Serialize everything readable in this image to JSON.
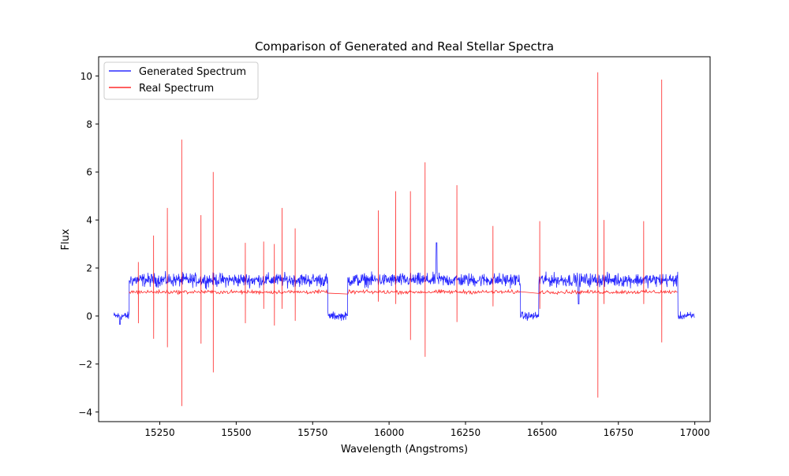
{
  "chart_data": {
    "type": "line",
    "title": "Comparison of Generated and Real Stellar Spectra",
    "xlabel": "Wavelength (Angstroms)",
    "ylabel": "Flux",
    "xlim": [
      15050,
      17050
    ],
    "ylim": [
      -4.4,
      10.8
    ],
    "xticks": [
      15250,
      15500,
      15750,
      16000,
      16250,
      16500,
      16750,
      17000
    ],
    "yticks": [
      -4,
      -2,
      0,
      2,
      4,
      6,
      8,
      10
    ],
    "xtick_labels": [
      "15250",
      "15500",
      "15750",
      "16000",
      "16250",
      "16500",
      "16750",
      "17000"
    ],
    "ytick_labels": [
      "−4",
      "−2",
      "0",
      "2",
      "4",
      "6",
      "8",
      "10"
    ],
    "legend_position": "top-left",
    "grid": false,
    "colors": {
      "generated": "#0000ff",
      "real": "#ff0000"
    },
    "x_range": [
      15100,
      17000
    ],
    "chip_gaps": [
      [
        15100,
        15150
      ],
      [
        15800,
        15865
      ],
      [
        16430,
        16490
      ],
      [
        16945,
        17000
      ]
    ],
    "series": [
      {
        "name": "Generated Spectrum",
        "color": "#0000ff",
        "continuum_levels": [
          {
            "x": [
              15100,
              15150
            ],
            "level": 0.0,
            "noise": 0.15
          },
          {
            "x": [
              15150,
              15800
            ],
            "level": 1.5,
            "noise": 0.25
          },
          {
            "x": [
              15800,
              15865
            ],
            "level": 0.0,
            "noise": 0.15
          },
          {
            "x": [
              15865,
              16430
            ],
            "level": 1.5,
            "noise": 0.25
          },
          {
            "x": [
              16430,
              16490
            ],
            "level": 0.0,
            "noise": 0.15
          },
          {
            "x": [
              16490,
              16945
            ],
            "level": 1.5,
            "noise": 0.25
          },
          {
            "x": [
              16945,
              17000
            ],
            "level": 0.0,
            "noise": 0.15
          }
        ],
        "features": [
          {
            "x": 16155,
            "y": 3.05
          },
          {
            "x": 16620,
            "y": 0.5
          },
          {
            "x": 15120,
            "y": -0.35
          }
        ]
      },
      {
        "name": "Real Spectrum",
        "color": "#ff0000",
        "continuum_levels": [
          {
            "x": [
              15150,
              15800
            ],
            "level": 1.0,
            "noise": 0.07
          },
          {
            "x": [
              15865,
              16430
            ],
            "level": 1.0,
            "noise": 0.07
          },
          {
            "x": [
              16490,
              16945
            ],
            "level": 1.0,
            "noise": 0.07
          }
        ],
        "spikes": [
          {
            "x": 15180,
            "high": 2.25,
            "low": -0.3
          },
          {
            "x": 15230,
            "high": 3.35,
            "low": -0.95
          },
          {
            "x": 15275,
            "high": 4.5,
            "low": -1.3
          },
          {
            "x": 15322,
            "high": 7.35,
            "low": -3.75
          },
          {
            "x": 15385,
            "high": 4.2,
            "low": -1.15
          },
          {
            "x": 15425,
            "high": 6.0,
            "low": -2.35
          },
          {
            "x": 15530,
            "high": 3.05,
            "low": -0.3
          },
          {
            "x": 15590,
            "high": 3.1,
            "low": 0.3
          },
          {
            "x": 15625,
            "high": 3.0,
            "low": -0.4
          },
          {
            "x": 15650,
            "high": 4.5,
            "low": 0.3
          },
          {
            "x": 15693,
            "high": 3.65,
            "low": -0.2
          },
          {
            "x": 15965,
            "high": 4.4,
            "low": 0.6
          },
          {
            "x": 16022,
            "high": 5.2,
            "low": 0.5
          },
          {
            "x": 16070,
            "high": 5.2,
            "low": -1.0
          },
          {
            "x": 16118,
            "high": 6.4,
            "low": -1.7
          },
          {
            "x": 16222,
            "high": 5.45,
            "low": -0.25
          },
          {
            "x": 16340,
            "high": 3.75,
            "low": 0.4
          },
          {
            "x": 16493,
            "high": 3.95,
            "low": 0.3
          },
          {
            "x": 16683,
            "high": 10.15,
            "low": -3.4
          },
          {
            "x": 16703,
            "high": 4.0,
            "low": 0.5
          },
          {
            "x": 16833,
            "high": 3.95,
            "low": 0.5
          },
          {
            "x": 16892,
            "high": 9.85,
            "low": -1.1
          }
        ]
      }
    ]
  }
}
